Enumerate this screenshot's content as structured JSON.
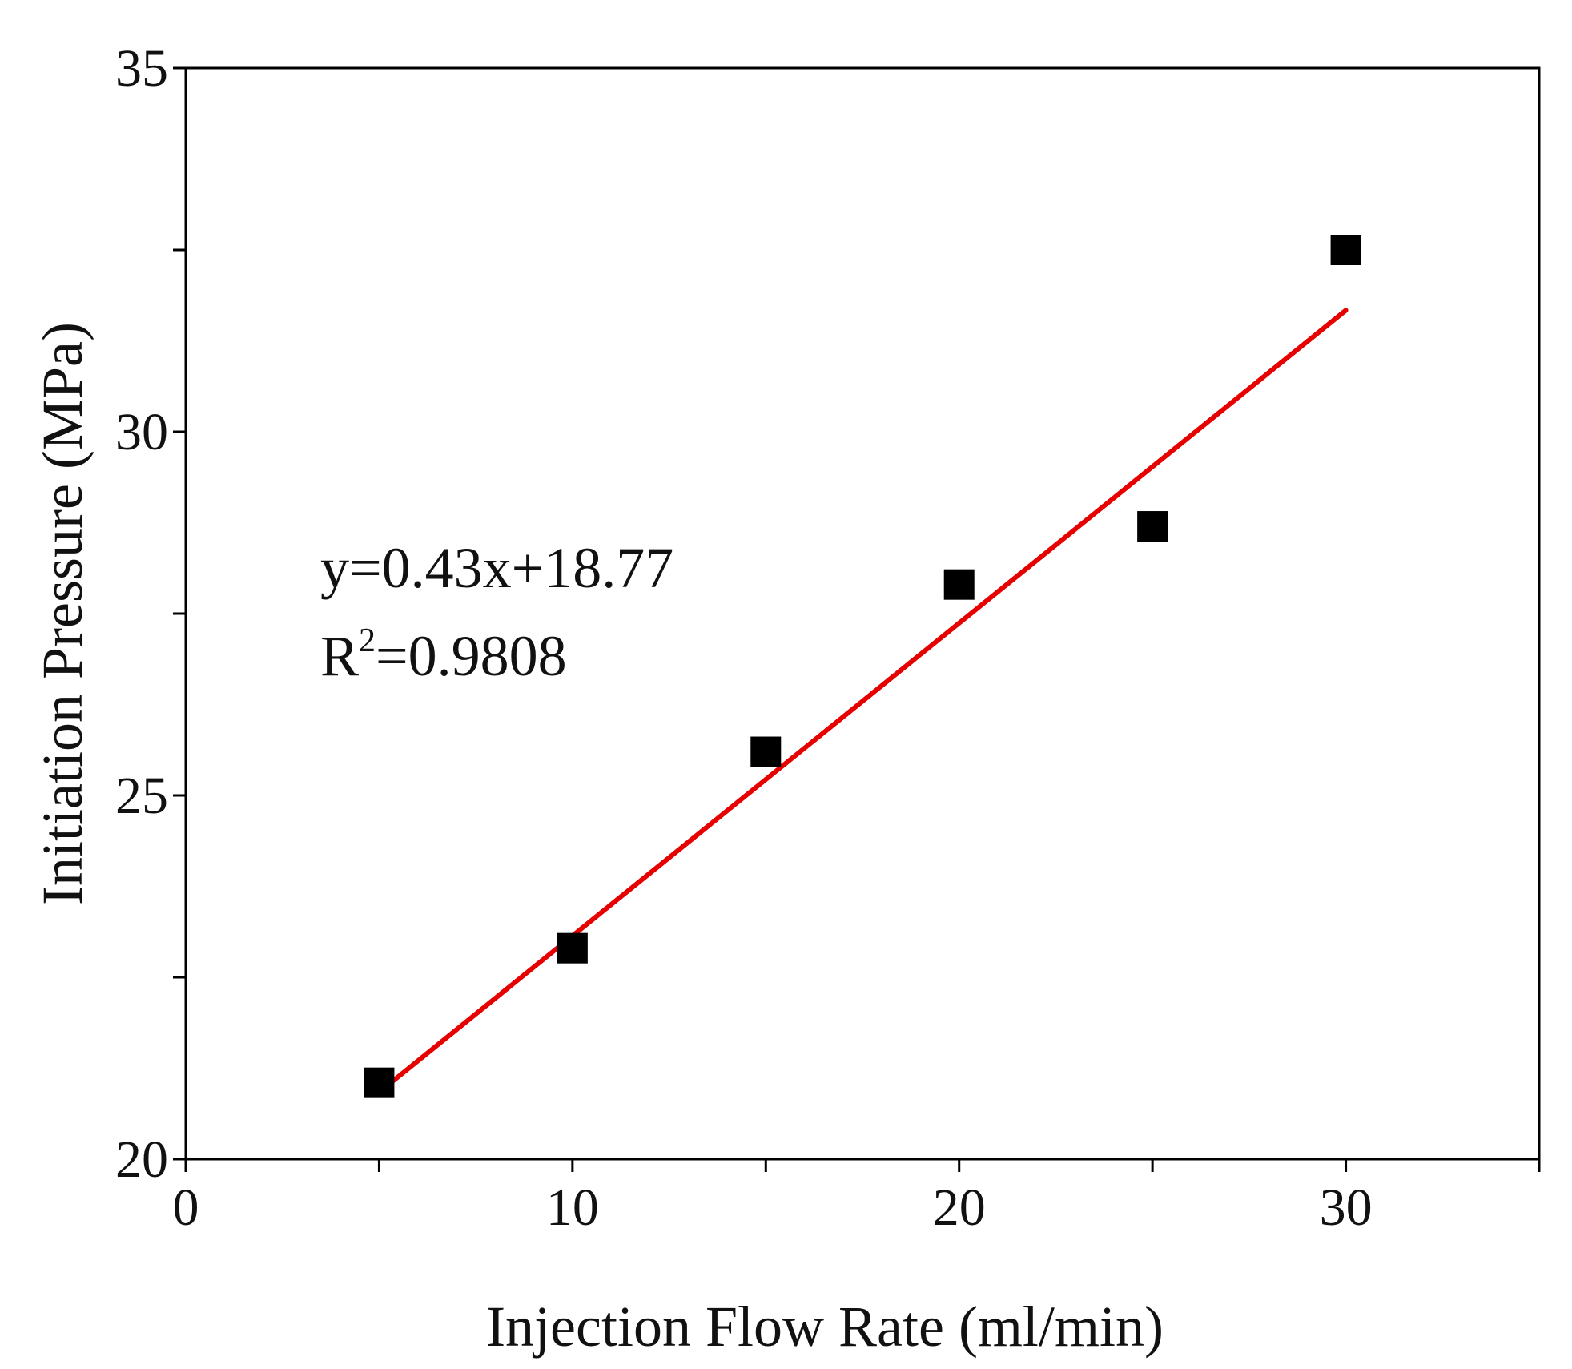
{
  "chart_data": {
    "type": "scatter",
    "xlabel": "Injection Flow Rate (ml/min)",
    "ylabel": "Initiation Pressure (MPa)",
    "xlim": [
      0,
      35
    ],
    "ylim": [
      20,
      35
    ],
    "x_ticks": [
      {
        "value": 0,
        "label": "0"
      },
      {
        "value": 10,
        "label": "10"
      },
      {
        "value": 20,
        "label": "20"
      },
      {
        "value": 30,
        "label": "30"
      }
    ],
    "x_minor_ticks": [
      5,
      15,
      25,
      35
    ],
    "y_ticks": [
      {
        "value": 20,
        "label": "20"
      },
      {
        "value": 25,
        "label": "25"
      },
      {
        "value": 30,
        "label": "30"
      },
      {
        "value": 35,
        "label": "35"
      }
    ],
    "y_minor_ticks": [
      22.5,
      27.5,
      32.5
    ],
    "grid": false,
    "series": [
      {
        "marker": "square",
        "color": "#000000",
        "points": [
          {
            "x": 5,
            "y": 21.05
          },
          {
            "x": 10,
            "y": 22.9
          },
          {
            "x": 15,
            "y": 25.6
          },
          {
            "x": 20,
            "y": 27.9
          },
          {
            "x": 25,
            "y": 28.7
          },
          {
            "x": 30,
            "y": 32.5
          }
        ]
      }
    ],
    "fit_line": {
      "color": "#e60000",
      "slope": 0.43,
      "intercept": 18.77,
      "x_range": [
        5,
        30
      ]
    },
    "annotations": {
      "equation": "y=0.43x+18.77",
      "r2_base": "R",
      "r2_sup": "2",
      "r2_value": "=0.9808"
    }
  }
}
